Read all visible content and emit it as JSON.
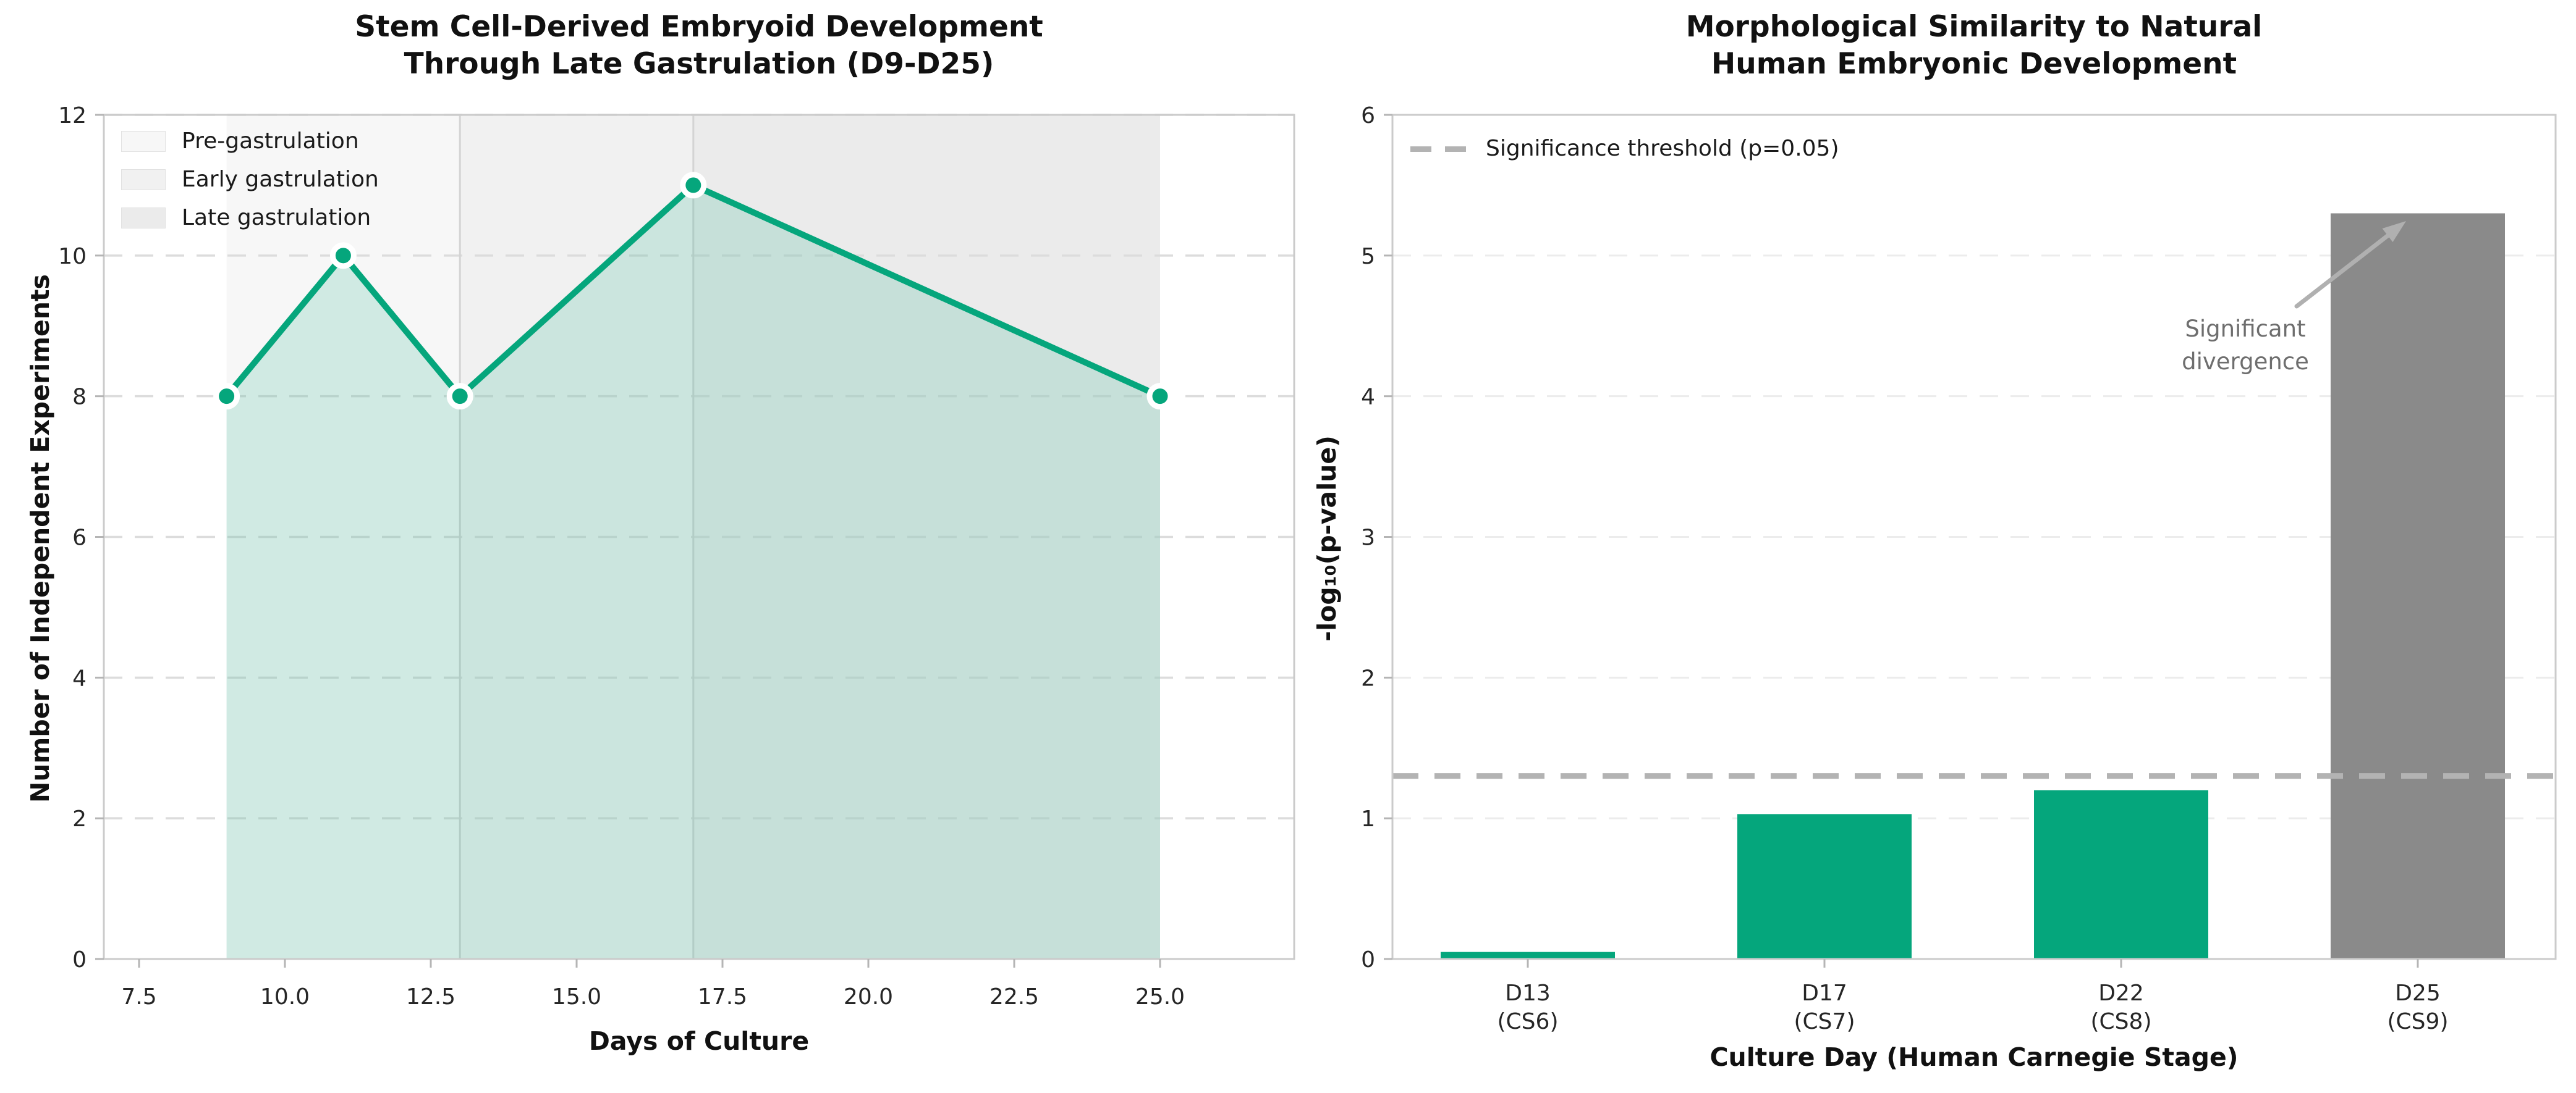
{
  "figure": {
    "background": "#ffffff",
    "accent_green": "#05a67c",
    "bar_gray": "#8a8a8a",
    "grid_color": "#dcdcdc",
    "spine_color": "#cbcbcb"
  },
  "chart_data": [
    {
      "type": "line",
      "title": "Stem Cell-Derived Embryoid Development\nThrough Late Gastrulation (D9-D25)",
      "xlabel": "Days of Culture",
      "ylabel": "Number of Independent Experiments",
      "x": [
        9,
        11,
        13,
        17,
        25
      ],
      "y": [
        8,
        10,
        8,
        11,
        8
      ],
      "xlim": [
        6.9,
        27.3
      ],
      "ylim": [
        0,
        12
      ],
      "xticks": [
        7.5,
        10.0,
        12.5,
        15.0,
        17.5,
        20.0,
        22.5,
        25.0
      ],
      "yticks": [
        0,
        2,
        4,
        6,
        8,
        10,
        12
      ],
      "line_color": "#05a67c",
      "marker": "circle-white-edge",
      "fill_color": "rgba(5,166,124,0.16)",
      "grid": "dashed horizontal",
      "legend_position": "upper left",
      "bands": [
        {
          "label": "Pre-gastrulation",
          "from": 9,
          "to": 13,
          "color": "#f7f7f7"
        },
        {
          "label": "Early gastrulation",
          "from": 13,
          "to": 17,
          "color": "#f1f1f1"
        },
        {
          "label": "Late gastrulation",
          "from": 17,
          "to": 25,
          "color": "#ebebeb"
        }
      ]
    },
    {
      "type": "bar",
      "title": "Morphological Similarity to Natural\nHuman Embryonic Development",
      "xlabel": "Culture Day (Human Carnegie Stage)",
      "ylabel": "-log₁₀(p-value)",
      "categories": [
        "D13\n(CS6)",
        "D17\n(CS7)",
        "D22\n(CS8)",
        "D25\n(CS9)"
      ],
      "values": [
        0.05,
        1.03,
        1.2,
        5.3
      ],
      "bar_colors": [
        "#05a67c",
        "#05a67c",
        "#05a67c",
        "#8a8a8a"
      ],
      "ylim": [
        0,
        6
      ],
      "yticks": [
        0,
        1,
        2,
        3,
        4,
        5,
        6
      ],
      "grid": "dashed horizontal",
      "threshold": {
        "value": 1.301,
        "label": "Significance threshold (p=0.05)",
        "color": "#b3b3b3",
        "style": "dashed"
      },
      "annotation": {
        "text": "Significant\ndivergence",
        "color": "#6e6e6e",
        "points_to": "D25 (CS9) bar"
      },
      "legend_position": "upper left"
    }
  ]
}
